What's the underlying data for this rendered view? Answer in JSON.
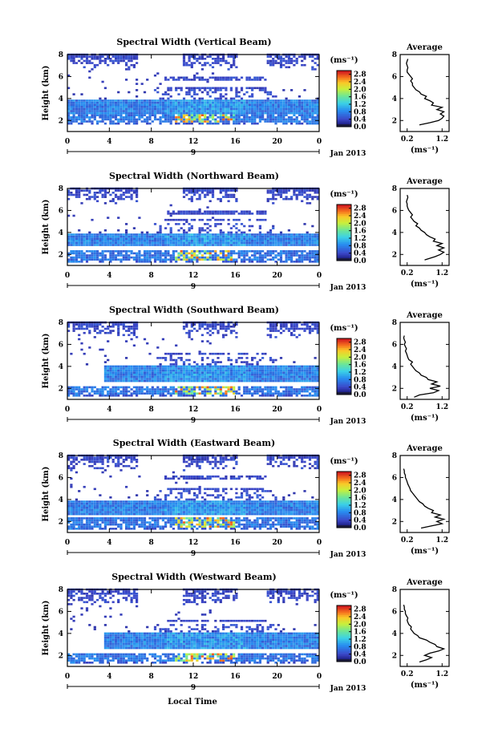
{
  "figure": {
    "xlabel_bottom": "Local Time",
    "date_label": "Jan 2013",
    "day_label": "9",
    "ylabel": "Height (km)",
    "colorbar_unit": "(ms⁻¹)",
    "profile_title": "Average",
    "profile_xlabel": "(ms⁻¹)"
  },
  "chart_data": [
    {
      "type": "heatmap",
      "title": "Spectral Width (Vertical Beam)",
      "xlabel": "",
      "ylabel": "Height (km)",
      "x_ticks": [
        "0",
        "4",
        "8",
        "12",
        "16",
        "20",
        "0"
      ],
      "xlim": [
        0,
        24
      ],
      "y_ticks": [
        "2",
        "4",
        "6",
        "8"
      ],
      "ylim": [
        1,
        8
      ],
      "colorbar": {
        "ticks": [
          "0.0",
          "0.4",
          "0.8",
          "1.2",
          "1.6",
          "2.0",
          "2.4",
          "2.8"
        ],
        "range": [
          0,
          3.0
        ],
        "unit": "(ms⁻¹)"
      },
      "layers": {
        "main_bottom": 2.6,
        "main_top": 3.9,
        "lower_bottom": 1.6,
        "lower_top": 2.6,
        "main_start": 0,
        "upper_bands": [
          4.5,
          4.9,
          5.8
        ]
      },
      "profile": {
        "title": "Average",
        "xlabel": "(ms⁻¹)",
        "x_ticks": [
          "0.2",
          "1.2"
        ],
        "xlim": [
          0.0,
          1.4
        ],
        "ylim": [
          1,
          8
        ],
        "y_ticks": [
          "2",
          "4",
          "6",
          "8"
        ],
        "x": [
          0.55,
          0.85,
          1.1,
          1.2,
          1.25,
          1.15,
          1.25,
          1.05,
          1.2,
          0.9,
          0.95,
          0.85,
          0.7,
          0.75,
          0.6,
          0.55,
          0.45,
          0.4,
          0.35,
          0.35,
          0.3,
          0.35,
          0.3,
          0.25,
          0.2,
          0.2,
          0.22,
          0.2,
          0.18,
          0.2,
          0.22
        ],
        "y": [
          1.6,
          1.8,
          2.0,
          2.2,
          2.4,
          2.6,
          2.8,
          3.0,
          3.2,
          3.4,
          3.6,
          3.8,
          4.0,
          4.2,
          4.4,
          4.6,
          4.8,
          5.0,
          5.2,
          5.4,
          5.6,
          5.8,
          6.0,
          6.2,
          6.4,
          6.6,
          6.8,
          7.0,
          7.2,
          7.4,
          7.6
        ]
      }
    },
    {
      "type": "heatmap",
      "title": "Spectral Width (Northward Beam)",
      "xlabel": "",
      "ylabel": "Height (km)",
      "x_ticks": [
        "0",
        "4",
        "8",
        "12",
        "16",
        "20",
        "0"
      ],
      "xlim": [
        0,
        24
      ],
      "y_ticks": [
        "2",
        "4",
        "6",
        "8"
      ],
      "ylim": [
        1,
        8
      ],
      "colorbar": {
        "ticks": [
          "0.0",
          "0.4",
          "0.8",
          "1.2",
          "1.6",
          "2.0",
          "2.4",
          "2.8"
        ],
        "range": [
          0,
          3.0
        ],
        "unit": "(ms⁻¹)"
      },
      "layers": {
        "main_bottom": 2.7,
        "main_top": 3.9,
        "lower_bottom": 1.2,
        "lower_top": 2.4,
        "main_start": 0,
        "upper_bands": [
          4.6,
          5.2,
          5.8
        ]
      },
      "profile": {
        "title": "Average",
        "xlabel": "(ms⁻¹)",
        "x_ticks": [
          "0.2",
          "1.2"
        ],
        "xlim": [
          0.0,
          1.4
        ],
        "ylim": [
          1,
          8
        ],
        "y_ticks": [
          "2",
          "4",
          "6",
          "8"
        ],
        "x": [
          0.7,
          1.0,
          1.15,
          1.25,
          1.1,
          1.25,
          1.05,
          1.2,
          0.95,
          1.0,
          0.85,
          0.75,
          0.7,
          0.6,
          0.55,
          0.45,
          0.5,
          0.4,
          0.35,
          0.3,
          0.35,
          0.3,
          0.25,
          0.22,
          0.2,
          0.2,
          0.18,
          0.2,
          0.22,
          0.2
        ],
        "y": [
          1.5,
          1.8,
          2.0,
          2.2,
          2.4,
          2.6,
          2.8,
          3.0,
          3.2,
          3.4,
          3.6,
          3.8,
          4.0,
          4.2,
          4.4,
          4.6,
          4.8,
          5.0,
          5.2,
          5.4,
          5.6,
          5.8,
          6.0,
          6.2,
          6.4,
          6.6,
          6.8,
          7.0,
          7.2,
          7.4
        ]
      }
    },
    {
      "type": "heatmap",
      "title": "Spectral Width (Southward Beam)",
      "xlabel": "",
      "ylabel": "Height (km)",
      "x_ticks": [
        "0",
        "4",
        "8",
        "12",
        "16",
        "20",
        "0"
      ],
      "xlim": [
        0,
        24
      ],
      "y_ticks": [
        "2",
        "4",
        "6",
        "8"
      ],
      "ylim": [
        1,
        8
      ],
      "colorbar": {
        "ticks": [
          "0.0",
          "0.4",
          "0.8",
          "1.2",
          "1.6",
          "2.0",
          "2.4",
          "2.8"
        ],
        "range": [
          0,
          3.0
        ],
        "unit": "(ms⁻¹)"
      },
      "layers": {
        "main_bottom": 2.6,
        "main_top": 4.0,
        "lower_bottom": 1.2,
        "lower_top": 2.2,
        "main_start": 3.3,
        "upper_bands": [
          4.5,
          5.1
        ]
      },
      "profile": {
        "title": "Average",
        "xlabel": "(ms⁻¹)",
        "x_ticks": [
          "0.2",
          "1.2"
        ],
        "xlim": [
          0.0,
          1.4
        ],
        "ylim": [
          1,
          8
        ],
        "y_ticks": [
          "2",
          "4",
          "6",
          "8"
        ],
        "x": [
          0.4,
          0.55,
          0.95,
          1.1,
          0.85,
          1.15,
          0.9,
          1.05,
          0.8,
          0.75,
          0.6,
          0.55,
          0.45,
          0.4,
          0.35,
          0.3,
          0.35,
          0.25,
          0.22,
          0.2,
          0.18,
          0.15,
          0.18,
          0.15,
          0.12,
          0.15,
          0.12,
          0.1,
          0.12
        ],
        "y": [
          1.2,
          1.4,
          1.6,
          1.8,
          2.0,
          2.2,
          2.4,
          2.6,
          2.8,
          3.0,
          3.2,
          3.4,
          3.6,
          3.8,
          4.0,
          4.2,
          4.4,
          4.6,
          4.8,
          5.0,
          5.2,
          5.4,
          5.6,
          5.8,
          6.0,
          6.2,
          6.4,
          6.6,
          6.8
        ]
      }
    },
    {
      "type": "heatmap",
      "title": "Spectral Width (Eastward Beam)",
      "xlabel": "",
      "ylabel": "Height (km)",
      "x_ticks": [
        "0",
        "4",
        "8",
        "12",
        "16",
        "20",
        "0"
      ],
      "xlim": [
        0,
        24
      ],
      "y_ticks": [
        "2",
        "4",
        "6",
        "8"
      ],
      "ylim": [
        1,
        8
      ],
      "colorbar": {
        "ticks": [
          "0.0",
          "0.4",
          "0.8",
          "1.2",
          "1.6",
          "2.0",
          "2.4",
          "2.8"
        ],
        "range": [
          0,
          3.0
        ],
        "unit": "(ms⁻¹)"
      },
      "layers": {
        "main_bottom": 2.6,
        "main_top": 3.9,
        "lower_bottom": 1.2,
        "lower_top": 2.4,
        "main_start": 0,
        "upper_bands": [
          4.5,
          5.0,
          6.0
        ]
      },
      "profile": {
        "title": "Average",
        "xlabel": "(ms⁻¹)",
        "x_ticks": [
          "0.2",
          "1.2"
        ],
        "xlim": [
          0.0,
          1.4
        ],
        "ylim": [
          1,
          8
        ],
        "y_ticks": [
          "2",
          "4",
          "6",
          "8"
        ],
        "x": [
          0.6,
          0.9,
          1.2,
          1.05,
          1.25,
          1.0,
          1.15,
          0.9,
          0.95,
          0.8,
          0.7,
          0.65,
          0.55,
          0.5,
          0.45,
          0.4,
          0.35,
          0.3,
          0.28,
          0.25,
          0.22,
          0.2,
          0.18,
          0.15,
          0.15,
          0.12,
          0.12,
          0.1
        ],
        "y": [
          1.4,
          1.6,
          1.8,
          2.0,
          2.2,
          2.4,
          2.6,
          2.8,
          3.0,
          3.2,
          3.4,
          3.6,
          3.8,
          4.0,
          4.2,
          4.4,
          4.6,
          4.8,
          5.0,
          5.2,
          5.4,
          5.6,
          5.8,
          6.0,
          6.2,
          6.4,
          6.6,
          6.8
        ]
      }
    },
    {
      "type": "heatmap",
      "title": "Spectral Width (Westward Beam)",
      "xlabel": "Local Time",
      "ylabel": "Height (km)",
      "x_ticks": [
        "0",
        "4",
        "8",
        "12",
        "16",
        "20",
        "0"
      ],
      "xlim": [
        0,
        24
      ],
      "y_ticks": [
        "2",
        "4",
        "6",
        "8"
      ],
      "ylim": [
        1,
        8
      ],
      "colorbar": {
        "ticks": [
          "0.0",
          "0.4",
          "0.8",
          "1.2",
          "1.6",
          "2.0",
          "2.4",
          "2.8"
        ],
        "range": [
          0,
          3.0
        ],
        "unit": "(ms⁻¹)"
      },
      "layers": {
        "main_bottom": 2.6,
        "main_top": 4.0,
        "lower_bottom": 1.2,
        "lower_top": 2.2,
        "main_start": 3.3,
        "upper_bands": [
          4.6,
          5.2
        ]
      },
      "profile": {
        "title": "Average",
        "xlabel": "(ms⁻¹)",
        "x_ticks": [
          "0.2",
          "1.2"
        ],
        "xlim": [
          0.0,
          1.4
        ],
        "ylim": [
          1,
          8
        ],
        "y_ticks": [
          "2",
          "4",
          "6",
          "8"
        ],
        "x": [
          0.55,
          0.75,
          0.9,
          0.7,
          0.85,
          1.1,
          1.25,
          1.05,
          1.0,
          0.85,
          0.75,
          0.55,
          0.5,
          0.4,
          0.35,
          0.3,
          0.32,
          0.25,
          0.22,
          0.2,
          0.22,
          0.18,
          0.15,
          0.15,
          0.12,
          0.12,
          0.1
        ],
        "y": [
          1.4,
          1.6,
          1.8,
          2.0,
          2.2,
          2.4,
          2.6,
          2.8,
          3.0,
          3.2,
          3.4,
          3.6,
          3.8,
          4.0,
          4.2,
          4.4,
          4.6,
          4.8,
          5.0,
          5.2,
          5.4,
          5.6,
          5.8,
          6.0,
          6.2,
          6.4,
          6.6
        ]
      }
    }
  ]
}
